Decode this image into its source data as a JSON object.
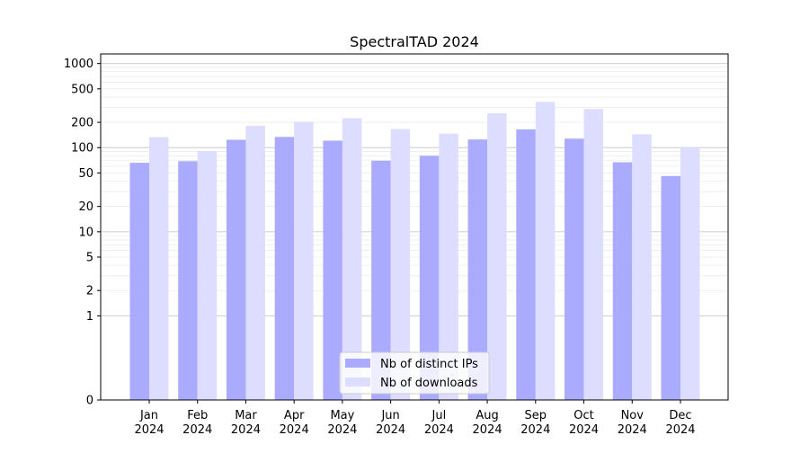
{
  "chart_data": {
    "type": "bar",
    "title": "SpectralTAD 2024",
    "xlabel": "",
    "ylabel": "",
    "yscale": "symlog",
    "ylim": [
      0,
      1300
    ],
    "grid": "horizontal",
    "legend_position": "bottom-center",
    "categories": [
      [
        "Jan",
        "2024"
      ],
      [
        "Feb",
        "2024"
      ],
      [
        "Mar",
        "2024"
      ],
      [
        "Apr",
        "2024"
      ],
      [
        "May",
        "2024"
      ],
      [
        "Jun",
        "2024"
      ],
      [
        "Jul",
        "2024"
      ],
      [
        "Aug",
        "2024"
      ],
      [
        "Sep",
        "2024"
      ],
      [
        "Oct",
        "2024"
      ],
      [
        "Nov",
        "2024"
      ],
      [
        "Dec",
        "2024"
      ]
    ],
    "y_ticks": [
      {
        "value": 0,
        "label": "0"
      },
      {
        "value": 1,
        "label": "1"
      },
      {
        "value": 2,
        "label": "2"
      },
      {
        "value": 5,
        "label": "5"
      },
      {
        "value": 10,
        "label": "10"
      },
      {
        "value": 20,
        "label": "20"
      },
      {
        "value": 50,
        "label": "50"
      },
      {
        "value": 100,
        "label": "100"
      },
      {
        "value": 200,
        "label": "200"
      },
      {
        "value": 500,
        "label": "500"
      },
      {
        "value": 1000,
        "label": "1000"
      }
    ],
    "series": [
      {
        "name": "Nb of distinct IPs",
        "color": "#aaaaff",
        "values": [
          66,
          69,
          124,
          134,
          121,
          70,
          80,
          125,
          165,
          128,
          67,
          46
        ]
      },
      {
        "name": "Nb of downloads",
        "color": "#ddddff",
        "values": [
          133,
          91,
          181,
          203,
          224,
          166,
          147,
          256,
          350,
          288,
          144,
          101
        ]
      }
    ]
  }
}
